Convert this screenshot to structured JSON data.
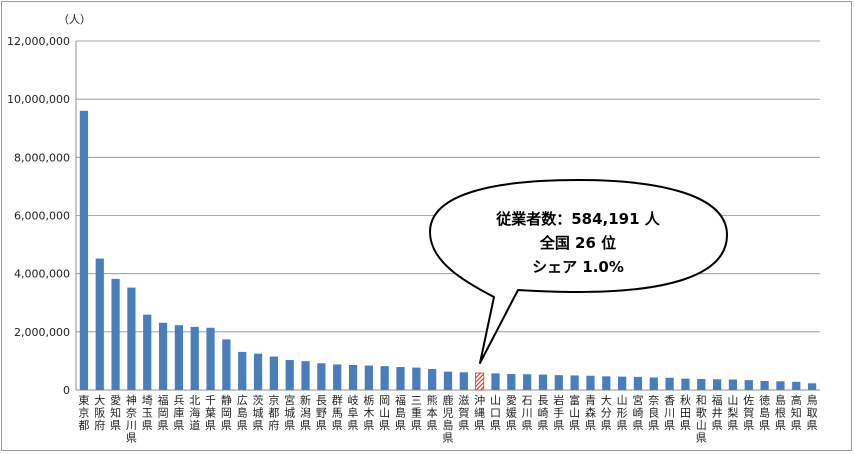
{
  "chart_data": {
    "type": "bar",
    "ylabel": "（人）",
    "ylim": [
      0,
      12000000
    ],
    "yticks": [
      "0",
      "2,000,000",
      "4,000,000",
      "6,000,000",
      "8,000,000",
      "10,000,000",
      "12,000,000"
    ],
    "grid": true,
    "categories": [
      "東京都",
      "大阪府",
      "愛知県",
      "神奈川県",
      "埼玉県",
      "福岡県",
      "兵庫県",
      "北海道",
      "千葉県",
      "静岡県",
      "広島県",
      "茨城県",
      "京都府",
      "宮城県",
      "新潟県",
      "長野県",
      "群馬県",
      "岐阜県",
      "栃木県",
      "岡山県",
      "福島県",
      "三重県",
      "熊本県",
      "鹿児島県",
      "滋賀県",
      "沖縄県",
      "山口県",
      "愛媛県",
      "石川県",
      "長崎県",
      "岩手県",
      "富山県",
      "青森県",
      "大分県",
      "山形県",
      "宮崎県",
      "奈良県",
      "香川県",
      "秋田県",
      "和歌山県",
      "福井県",
      "山梨県",
      "佐賀県",
      "徳島県",
      "島根県",
      "高知県",
      "鳥取県"
    ],
    "values": [
      9600000,
      4520000,
      3820000,
      3520000,
      2590000,
      2310000,
      2230000,
      2170000,
      2140000,
      1740000,
      1310000,
      1250000,
      1150000,
      1030000,
      990000,
      920000,
      880000,
      860000,
      840000,
      820000,
      790000,
      770000,
      720000,
      630000,
      610000,
      584191,
      570000,
      550000,
      540000,
      530000,
      510000,
      500000,
      490000,
      470000,
      460000,
      450000,
      430000,
      420000,
      390000,
      380000,
      370000,
      360000,
      340000,
      310000,
      300000,
      280000,
      230000
    ],
    "highlight_index": 25,
    "colors": {
      "bar": "#4a7ebb",
      "highlight": "#d9342b",
      "grid": "#8c8c8c"
    },
    "annotation": {
      "line1": "従業者数：584,191 人",
      "line2": "全国 26 位",
      "line3": "シェア 1.0%"
    }
  }
}
